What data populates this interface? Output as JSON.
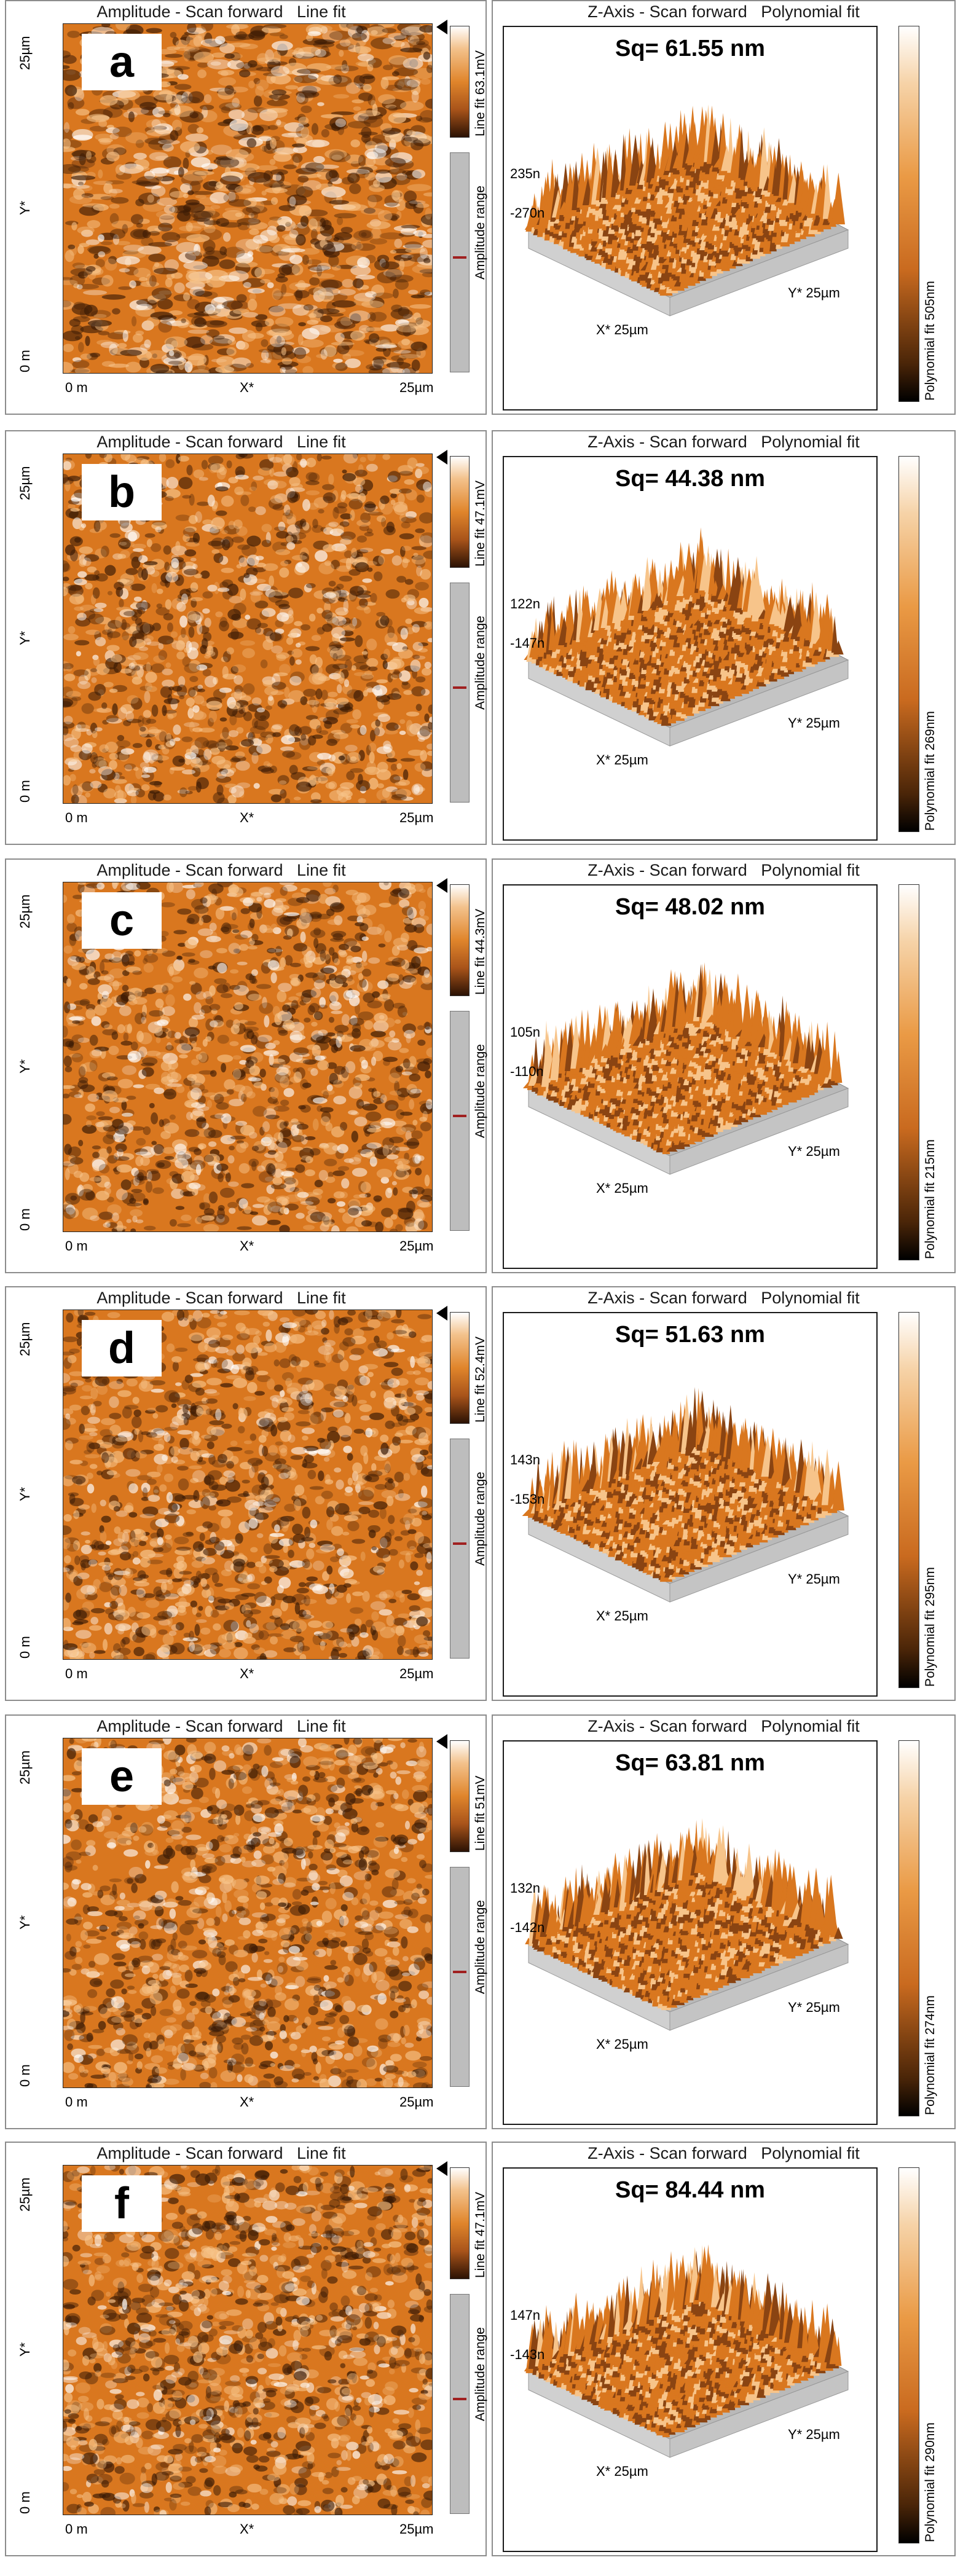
{
  "left_titles": {
    "amplitude": "Amplitude - Scan forward   Line fit",
    "x_axis_start": "0 m",
    "x_axis_mid": "X*",
    "x_axis_end": "25µm",
    "y_axis_start": "0 m",
    "y_axis_mid": "Y*",
    "y_axis_end": "25µm",
    "range_label": "Amplitude range"
  },
  "right_titles": {
    "zaxis": "Z-Axis - Scan forward   Polynomial fit",
    "x_label": "X* 25µm",
    "y_label": "Y* 25µm"
  },
  "panels": [
    {
      "letter": "a",
      "line_fit": "Line fit 63.1mV",
      "sq": "Sq= 61.55 nm",
      "zmax": "235n",
      "zmin": "-270n",
      "poly_fit": "Polynomial fit 505nm"
    },
    {
      "letter": "b",
      "line_fit": "Line fit 47.1mV",
      "sq": "Sq= 44.38 nm",
      "zmax": "122n",
      "zmin": "-147n",
      "poly_fit": "Polynomial fit 269nm"
    },
    {
      "letter": "c",
      "line_fit": "Line fit 44.3mV",
      "sq": "Sq= 48.02 nm",
      "zmax": "105n",
      "zmin": "-110n",
      "poly_fit": "Polynomial fit 215nm"
    },
    {
      "letter": "d",
      "line_fit": "Line fit 52.4mV",
      "sq": "Sq= 51.63 nm",
      "zmax": "143n",
      "zmin": "-153n",
      "poly_fit": "Polynomial fit 295nm"
    },
    {
      "letter": "e",
      "line_fit": "Line fit 51mV",
      "sq": "Sq= 63.81 nm",
      "zmax": "132n",
      "zmin": "-142n",
      "poly_fit": "Polynomial fit 274nm"
    },
    {
      "letter": "f",
      "line_fit": "Line fit 47.1mV",
      "sq": "Sq= 84.44 nm",
      "zmax": "147n",
      "zmin": "-143n",
      "poly_fit": "Polynomial fit 290nm"
    }
  ],
  "colors": {
    "afm_dark": "#3a1a05",
    "afm_mid": "#d9771f",
    "afm_light": "#f7c48a",
    "panel_border": "#8c8c8c"
  }
}
